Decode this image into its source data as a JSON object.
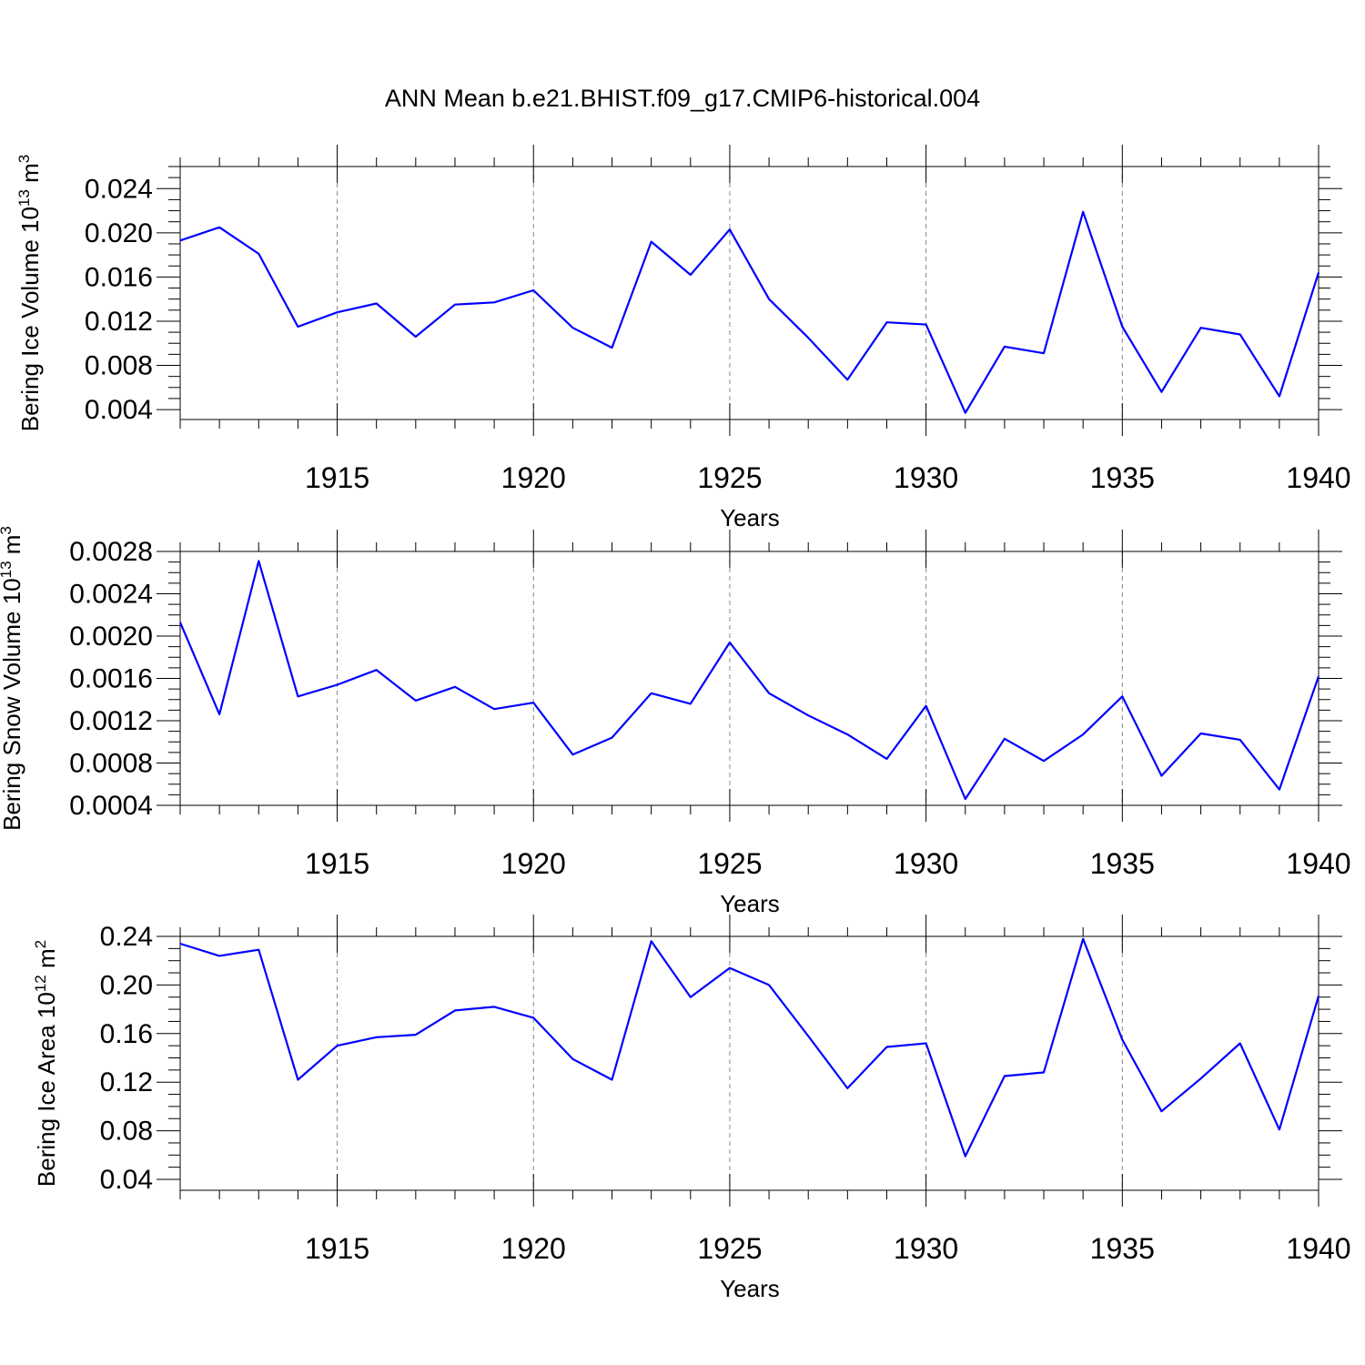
{
  "title": "ANN Mean b.e21.BHIST.f09_g17.CMIP6-historical.004",
  "colors": {
    "series": "#0000ff",
    "axis": "#000000",
    "grid": "#888888"
  },
  "chart_data": [
    {
      "type": "line",
      "ylabel_prefix": "Bering Ice Volume 10",
      "ylabel_exp": "13",
      "ylabel_unit": " m",
      "ylabel_unit_exp": "3",
      "xlabel": "Years",
      "xlim": [
        1911,
        1940
      ],
      "ylim": [
        0.0031,
        0.026
      ],
      "yticks": [
        0.004,
        0.008,
        0.012,
        0.016,
        0.02,
        0.024
      ],
      "ytick_labels": [
        "0.004",
        "0.008",
        "0.012",
        "0.016",
        "0.020",
        "0.024"
      ],
      "xticks": [
        1915,
        1920,
        1925,
        1930,
        1935,
        1940
      ],
      "xtick_labels": [
        "1915",
        "1920",
        "1925",
        "1930",
        "1935",
        "1940"
      ],
      "grid": "x-dashed",
      "x": [
        1911,
        1912,
        1913,
        1914,
        1915,
        1916,
        1917,
        1918,
        1919,
        1920,
        1921,
        1922,
        1923,
        1924,
        1925,
        1926,
        1927,
        1928,
        1929,
        1930,
        1931,
        1932,
        1933,
        1934,
        1935,
        1936,
        1937,
        1938,
        1939,
        1940
      ],
      "values": [
        0.0193,
        0.0205,
        0.0181,
        0.0115,
        0.0128,
        0.0136,
        0.0106,
        0.0135,
        0.0137,
        0.0148,
        0.0114,
        0.0096,
        0.0192,
        0.0162,
        0.0203,
        0.014,
        0.0105,
        0.0067,
        0.0119,
        0.0117,
        0.0037,
        0.0097,
        0.0091,
        0.0219,
        0.0115,
        0.0056,
        0.0114,
        0.0108,
        0.0052,
        0.0164
      ]
    },
    {
      "type": "line",
      "ylabel_prefix": "Bering Snow Volume 10",
      "ylabel_exp": "13",
      "ylabel_unit": " m",
      "ylabel_unit_exp": "3",
      "xlabel": "Years",
      "xlim": [
        1911,
        1940
      ],
      "ylim": [
        0.0004,
        0.0028
      ],
      "yticks": [
        0.0004,
        0.0008,
        0.0012,
        0.0016,
        0.002,
        0.0024,
        0.0028
      ],
      "ytick_labels": [
        "0.0004",
        "0.0008",
        "0.0012",
        "0.0016",
        "0.0020",
        "0.0024",
        "0.0028"
      ],
      "xticks": [
        1915,
        1920,
        1925,
        1930,
        1935,
        1940
      ],
      "xtick_labels": [
        "1915",
        "1920",
        "1925",
        "1930",
        "1935",
        "1940"
      ],
      "grid": "x-dashed",
      "x": [
        1911,
        1912,
        1913,
        1914,
        1915,
        1916,
        1917,
        1918,
        1919,
        1920,
        1921,
        1922,
        1923,
        1924,
        1925,
        1926,
        1927,
        1928,
        1929,
        1930,
        1931,
        1932,
        1933,
        1934,
        1935,
        1936,
        1937,
        1938,
        1939,
        1940
      ],
      "values": [
        0.00213,
        0.00126,
        0.00271,
        0.00143,
        0.00154,
        0.00168,
        0.00139,
        0.00152,
        0.00131,
        0.00137,
        0.00088,
        0.00104,
        0.00146,
        0.00136,
        0.00194,
        0.00146,
        0.00125,
        0.00107,
        0.00084,
        0.00134,
        0.00046,
        0.00103,
        0.00082,
        0.00107,
        0.00143,
        0.00068,
        0.00108,
        0.00102,
        0.00055,
        0.00162
      ]
    },
    {
      "type": "line",
      "ylabel_prefix": "Bering Ice Area 10",
      "ylabel_exp": "12",
      "ylabel_unit": " m",
      "ylabel_unit_exp": "2",
      "xlabel": "Years",
      "xlim": [
        1911,
        1940
      ],
      "ylim": [
        0.031,
        0.24
      ],
      "yticks": [
        0.04,
        0.08,
        0.12,
        0.16,
        0.2,
        0.24
      ],
      "ytick_labels": [
        "0.04",
        "0.08",
        "0.12",
        "0.16",
        "0.20",
        "0.24"
      ],
      "xticks": [
        1915,
        1920,
        1925,
        1930,
        1935,
        1940
      ],
      "xtick_labels": [
        "1915",
        "1920",
        "1925",
        "1930",
        "1935",
        "1940"
      ],
      "grid": "x-dashed",
      "x": [
        1911,
        1912,
        1913,
        1914,
        1915,
        1916,
        1917,
        1918,
        1919,
        1920,
        1921,
        1922,
        1923,
        1924,
        1925,
        1926,
        1927,
        1928,
        1929,
        1930,
        1931,
        1932,
        1933,
        1934,
        1935,
        1936,
        1937,
        1938,
        1939,
        1940
      ],
      "values": [
        0.234,
        0.224,
        0.229,
        0.122,
        0.15,
        0.157,
        0.159,
        0.179,
        0.182,
        0.173,
        0.139,
        0.122,
        0.236,
        0.19,
        0.214,
        0.2,
        0.158,
        0.115,
        0.149,
        0.152,
        0.059,
        0.125,
        0.128,
        0.238,
        0.155,
        0.096,
        0.123,
        0.152,
        0.081,
        0.191
      ]
    }
  ]
}
